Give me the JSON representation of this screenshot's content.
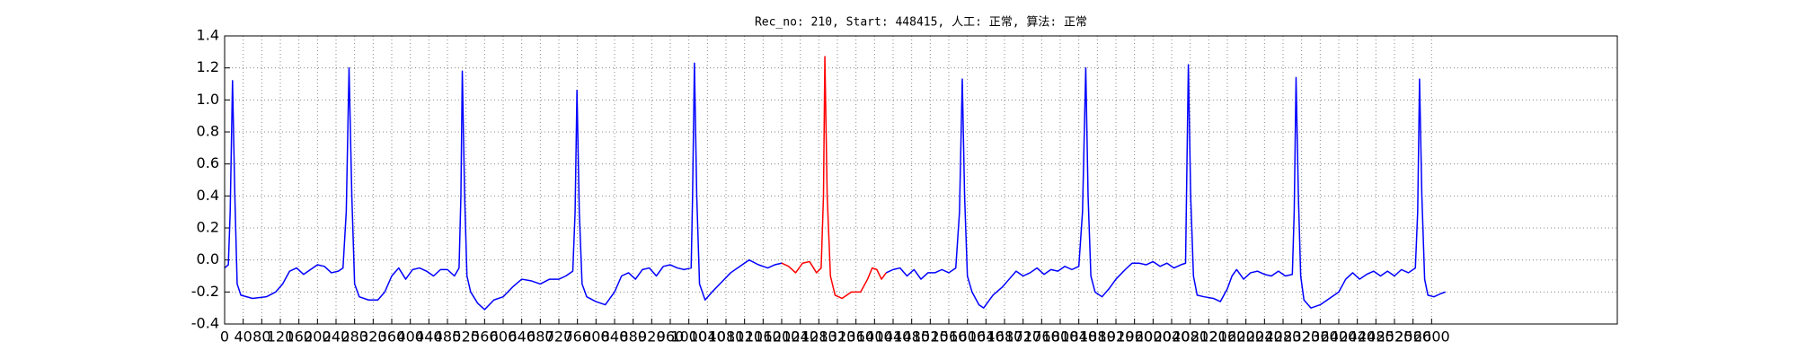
{
  "chart_data": {
    "type": "line",
    "title": "Rec_no: 210, Start: 448415, 人工: 正常, 算法: 正常",
    "xlim": [
      0,
      3000
    ],
    "xticks": [
      0,
      40,
      80,
      120,
      160,
      200,
      240,
      280,
      320,
      360,
      400,
      440,
      480,
      520,
      560,
      600,
      640,
      680,
      720,
      760,
      800,
      840,
      880,
      920,
      960,
      1000,
      1040,
      1080,
      1120,
      1160,
      1200,
      1240,
      1280,
      1320,
      1360,
      1400,
      1440,
      1480,
      1520,
      1560,
      1600,
      1640,
      1680,
      1720,
      1760,
      1800,
      1840,
      1880,
      1920,
      1960,
      2000,
      2040,
      2080,
      2120,
      2160,
      2200,
      2240,
      2280,
      2320,
      2360,
      2400,
      2440,
      2480,
      2520,
      2560,
      2600
    ],
    "ylim": [
      -0.4,
      1.4
    ],
    "yticks": [
      -0.4,
      -0.2,
      {
        "value": 0,
        "label": "0.0"
      },
      0.2,
      0.4,
      0.6,
      0.8,
      {
        "value": 1,
        "label": "1.0"
      },
      1.2,
      1.4
    ],
    "grid": true,
    "series": [
      {
        "color": "#0000ff",
        "x": [
          0,
          8,
          12,
          17,
          22,
          27,
          35,
          60,
          90,
          110,
          125,
          140,
          155,
          170,
          185,
          200,
          215,
          230,
          245,
          255,
          262,
          268,
          274,
          280,
          290,
          310,
          330,
          345,
          360,
          375,
          390,
          405,
          420,
          435,
          450,
          465,
          480,
          495,
          505,
          509,
          512,
          517,
          522,
          530,
          545,
          560,
          580,
          600,
          620,
          640,
          660,
          680,
          700,
          720,
          735,
          750,
          755,
          759,
          764,
          770,
          780,
          800,
          820,
          840,
          855,
          870,
          885,
          900,
          915,
          930,
          945,
          960,
          975,
          990,
          1005,
          1008,
          1012,
          1017,
          1023,
          1035,
          1050,
          1070,
          1090,
          1110,
          1130,
          1150,
          1170,
          1185,
          1200,
          1300,
          1425,
          1440,
          1455,
          1470,
          1485,
          1500,
          1515,
          1530,
          1545,
          1560,
          1575,
          1583,
          1589,
          1594,
          1600,
          1610,
          1625,
          1635,
          1655,
          1675,
          1690,
          1705,
          1720,
          1735,
          1750,
          1765,
          1780,
          1795,
          1810,
          1825,
          1840,
          1848,
          1855,
          1860,
          1866,
          1875,
          1890,
          1905,
          1920,
          1940,
          1955,
          1970,
          1985,
          2000,
          2015,
          2030,
          2045,
          2060,
          2070,
          2072,
          2076,
          2081,
          2087,
          2095,
          2110,
          2130,
          2145,
          2160,
          2170,
          2180,
          2195,
          2210,
          2225,
          2240,
          2255,
          2270,
          2285,
          2300,
          2304,
          2308,
          2313,
          2318,
          2325,
          2340,
          2360,
          2380,
          2400,
          2415,
          2430,
          2445,
          2460,
          2475,
          2490,
          2505,
          2520,
          2535,
          2550,
          2565,
          2570,
          2574,
          2579,
          2585,
          2592,
          2605,
          2620,
          2630
        ],
        "values": [
          -0.05,
          -0.03,
          0.3,
          1.12,
          0.4,
          -0.15,
          -0.22,
          -0.24,
          -0.23,
          -0.2,
          -0.15,
          -0.07,
          -0.05,
          -0.09,
          -0.06,
          -0.03,
          -0.04,
          -0.08,
          -0.07,
          -0.05,
          0.3,
          1.2,
          0.4,
          -0.15,
          -0.23,
          -0.25,
          -0.25,
          -0.2,
          -0.1,
          -0.05,
          -0.12,
          -0.06,
          -0.05,
          -0.07,
          -0.1,
          -0.06,
          -0.06,
          -0.1,
          -0.05,
          0.4,
          1.18,
          0.4,
          -0.1,
          -0.2,
          -0.27,
          -0.31,
          -0.25,
          -0.23,
          -0.17,
          -0.12,
          -0.13,
          -0.15,
          -0.12,
          -0.12,
          -0.1,
          -0.07,
          0.3,
          1.06,
          0.3,
          -0.15,
          -0.23,
          -0.26,
          -0.28,
          -0.2,
          -0.1,
          -0.08,
          -0.12,
          -0.06,
          -0.05,
          -0.1,
          -0.04,
          -0.03,
          -0.05,
          -0.06,
          -0.05,
          0.4,
          1.23,
          0.4,
          -0.15,
          -0.25,
          -0.2,
          -0.14,
          -0.08,
          -0.04,
          0.0,
          -0.03,
          -0.05,
          -0.03,
          -0.02,
          null,
          -0.08,
          -0.06,
          -0.05,
          -0.1,
          -0.06,
          -0.12,
          -0.08,
          -0.08,
          -0.06,
          -0.08,
          -0.05,
          0.3,
          1.13,
          0.4,
          -0.1,
          -0.2,
          -0.28,
          -0.3,
          -0.22,
          -0.17,
          -0.12,
          -0.07,
          -0.1,
          -0.08,
          -0.05,
          -0.09,
          -0.06,
          -0.07,
          -0.04,
          -0.06,
          -0.04,
          0.3,
          1.2,
          0.4,
          -0.1,
          -0.2,
          -0.23,
          -0.18,
          -0.12,
          -0.06,
          -0.02,
          -0.02,
          -0.03,
          -0.01,
          -0.04,
          -0.02,
          -0.05,
          -0.03,
          -0.02,
          0.4,
          1.22,
          0.4,
          -0.1,
          -0.22,
          -0.23,
          -0.24,
          -0.26,
          -0.18,
          -0.1,
          -0.06,
          -0.12,
          -0.08,
          -0.07,
          -0.09,
          -0.1,
          -0.07,
          -0.1,
          -0.09,
          0.3,
          1.14,
          0.4,
          -0.1,
          -0.25,
          -0.3,
          -0.28,
          -0.24,
          -0.2,
          -0.12,
          -0.08,
          -0.12,
          -0.09,
          -0.07,
          -0.1,
          -0.07,
          -0.1,
          -0.06,
          -0.08,
          -0.05,
          0.3,
          1.13,
          0.4,
          -0.12,
          -0.22,
          -0.23,
          -0.21,
          -0.2
        ]
      },
      {
        "color": "#ff0000",
        "x": [
          1200,
          1215,
          1230,
          1245,
          1260,
          1275,
          1285,
          1290,
          1293,
          1298,
          1305,
          1315,
          1330,
          1350,
          1370,
          1385,
          1395,
          1405,
          1415,
          1425
        ],
        "values": [
          -0.02,
          -0.04,
          -0.08,
          -0.02,
          -0.01,
          -0.08,
          -0.05,
          0.4,
          1.27,
          0.4,
          -0.1,
          -0.22,
          -0.24,
          -0.2,
          -0.2,
          -0.12,
          -0.05,
          -0.06,
          -0.12,
          -0.08
        ]
      }
    ]
  }
}
